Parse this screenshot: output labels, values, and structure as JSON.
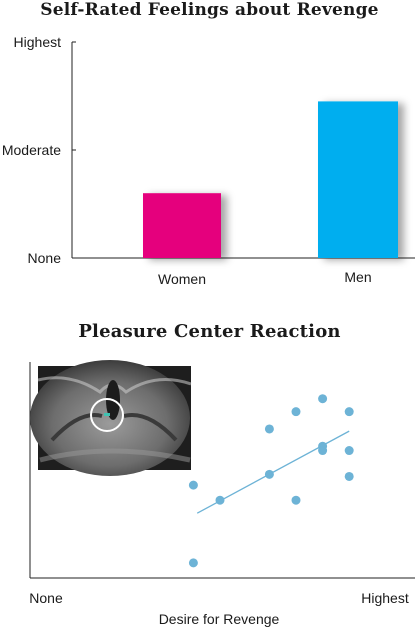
{
  "chart_data": [
    {
      "type": "bar",
      "title": "Self-Rated Feelings about Revenge",
      "categories": [
        "Women",
        "Men"
      ],
      "values": [
        1.2,
        2.9
      ],
      "y_ticks": [
        {
          "label": "None",
          "value": 0
        },
        {
          "label": "Moderate",
          "value": 2
        },
        {
          "label": "Highest",
          "value": 4
        }
      ],
      "ylim": [
        0,
        4
      ],
      "colors": [
        "#e5007d",
        "#00aeef"
      ],
      "grid": false
    },
    {
      "type": "scatter",
      "title": "Pleasure Center Reaction",
      "xlabel": "Desire for Revenge",
      "x_tick_labels": [
        "None",
        "Highest"
      ],
      "xlim": [
        0,
        10
      ],
      "ylim": [
        0,
        10
      ],
      "points": [
        {
          "x": 4.3,
          "y": 4.3
        },
        {
          "x": 4.3,
          "y": 0.7
        },
        {
          "x": 5.0,
          "y": 3.6
        },
        {
          "x": 6.3,
          "y": 6.9
        },
        {
          "x": 6.3,
          "y": 4.8
        },
        {
          "x": 7.0,
          "y": 7.7
        },
        {
          "x": 7.0,
          "y": 3.6
        },
        {
          "x": 7.7,
          "y": 8.3
        },
        {
          "x": 7.7,
          "y": 6.1
        },
        {
          "x": 7.7,
          "y": 5.9
        },
        {
          "x": 8.4,
          "y": 7.7
        },
        {
          "x": 8.4,
          "y": 5.9
        },
        {
          "x": 8.4,
          "y": 4.7
        }
      ],
      "trendline": {
        "x1": 4.4,
        "y1": 3.0,
        "x2": 8.4,
        "y2": 6.8
      },
      "point_color": "#6db3d6",
      "line_color": "#6db3d6",
      "inset": "brain-scan",
      "grid": false
    }
  ]
}
